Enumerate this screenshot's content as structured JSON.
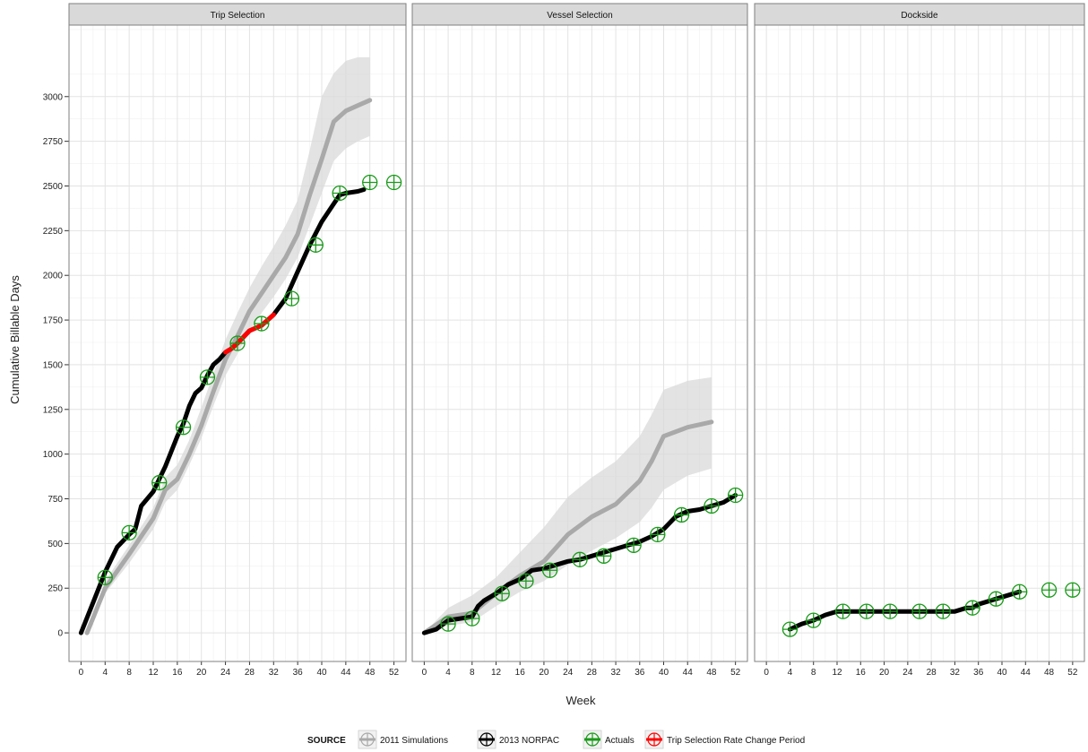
{
  "chart_data": {
    "type": "line",
    "xlabel": "Week",
    "ylabel": "Cumulative Billable Days",
    "xlim": [
      -2,
      54
    ],
    "ylim": [
      -160,
      3400
    ],
    "x_ticks": [
      0,
      4,
      8,
      12,
      16,
      20,
      24,
      28,
      32,
      36,
      40,
      44,
      48,
      52
    ],
    "y_ticks": [
      0,
      250,
      500,
      750,
      1000,
      1250,
      1500,
      1750,
      2000,
      2250,
      2500,
      2750,
      3000
    ],
    "grid": true,
    "legend_title": "SOURCE",
    "legend_position": "bottom",
    "legend": [
      {
        "label": "2011 Simulations",
        "color": "#a9a9a9",
        "icon": "grey-line-crosshair-icon"
      },
      {
        "label": "2013 NORPAC",
        "color": "#000000",
        "icon": "black-line-crosshair-icon"
      },
      {
        "label": "Actuals",
        "color": "#1a9a1a",
        "icon": "green-line-crosshair-icon"
      },
      {
        "label": "Trip Selection Rate Change Period",
        "color": "#ff0000",
        "icon": "red-line-crosshair-icon"
      }
    ],
    "colors": {
      "simulation": "#a9a9a9",
      "simulation_band": "#d9d9d9",
      "norpac": "#000000",
      "actuals": "#1a9a1a",
      "rate_change": "#ff0000",
      "strip_bg": "#d9d9d9"
    },
    "panels": [
      {
        "title": "Trip Selection",
        "simulation": {
          "x": [
            1,
            4,
            8,
            12,
            14,
            16,
            18,
            20,
            22,
            24,
            26,
            28,
            30,
            32,
            34,
            36,
            38,
            40,
            42,
            44,
            46,
            48
          ],
          "y": [
            0,
            250,
            440,
            640,
            800,
            860,
            1000,
            1160,
            1350,
            1530,
            1660,
            1800,
            1900,
            2000,
            2100,
            2230,
            2450,
            2650,
            2860,
            2920,
            2950,
            2980
          ],
          "lower": [
            0,
            220,
            390,
            580,
            730,
            800,
            940,
            1090,
            1270,
            1440,
            1560,
            1690,
            1790,
            1880,
            1980,
            2100,
            2280,
            2460,
            2640,
            2710,
            2750,
            2780
          ],
          "upper": [
            0,
            290,
            490,
            700,
            870,
            940,
            1080,
            1260,
            1450,
            1640,
            1790,
            1930,
            2050,
            2160,
            2280,
            2420,
            2700,
            3000,
            3130,
            3200,
            3220,
            3220
          ]
        },
        "norpac": {
          "x": [
            0,
            2,
            4,
            6,
            8,
            9,
            10,
            12,
            14,
            16,
            17,
            18,
            19,
            20,
            21,
            22,
            23,
            24,
            25,
            26,
            28,
            30,
            32,
            34,
            36,
            38,
            40,
            42,
            43,
            44,
            46,
            47
          ],
          "y": [
            0,
            170,
            340,
            480,
            550,
            580,
            710,
            790,
            930,
            1100,
            1170,
            1270,
            1340,
            1370,
            1440,
            1500,
            1530,
            1570,
            1590,
            1620,
            1690,
            1720,
            1780,
            1870,
            2020,
            2170,
            2300,
            2400,
            2450,
            2460,
            2470,
            2480
          ]
        },
        "rate_change": {
          "x": [
            24,
            25,
            26,
            28,
            30,
            32
          ],
          "y": [
            1570,
            1590,
            1620,
            1690,
            1720,
            1780
          ]
        },
        "actuals": {
          "x": [
            4,
            8,
            13,
            17,
            21,
            26,
            30,
            35,
            39,
            43,
            48,
            52
          ],
          "y": [
            310,
            560,
            840,
            1150,
            1430,
            1620,
            1730,
            1870,
            2170,
            2460,
            2520,
            2520
          ]
        }
      },
      {
        "title": "Vessel Selection",
        "simulation": {
          "x": [
            0,
            4,
            8,
            12,
            16,
            20,
            24,
            28,
            32,
            36,
            38,
            40,
            44,
            48
          ],
          "y": [
            0,
            90,
            110,
            220,
            320,
            400,
            550,
            650,
            720,
            850,
            960,
            1100,
            1150,
            1180
          ],
          "lower": [
            0,
            40,
            60,
            150,
            230,
            290,
            380,
            460,
            530,
            620,
            700,
            800,
            880,
            920
          ],
          "upper": [
            0,
            140,
            210,
            310,
            450,
            590,
            760,
            870,
            960,
            1100,
            1220,
            1360,
            1410,
            1430
          ]
        },
        "norpac": {
          "x": [
            0,
            2,
            4,
            6,
            8,
            9,
            10,
            12,
            14,
            16,
            18,
            20,
            22,
            24,
            26,
            28,
            30,
            32,
            34,
            36,
            38,
            40,
            42,
            44,
            46,
            48,
            50,
            52
          ],
          "y": [
            0,
            20,
            70,
            80,
            90,
            150,
            180,
            220,
            270,
            300,
            350,
            360,
            380,
            400,
            410,
            430,
            450,
            470,
            490,
            510,
            540,
            580,
            650,
            680,
            690,
            710,
            730,
            770
          ]
        },
        "actuals": {
          "x": [
            4,
            8,
            13,
            17,
            21,
            26,
            30,
            35,
            39,
            43,
            48,
            52
          ],
          "y": [
            50,
            80,
            220,
            290,
            350,
            410,
            430,
            490,
            550,
            660,
            710,
            770
          ]
        }
      },
      {
        "title": "Dockside",
        "norpac": {
          "x": [
            4,
            6,
            8,
            10,
            12,
            13,
            16,
            20,
            24,
            28,
            32,
            34,
            35,
            36,
            38,
            40,
            42,
            43
          ],
          "y": [
            20,
            50,
            70,
            100,
            120,
            120,
            120,
            120,
            120,
            120,
            120,
            140,
            140,
            160,
            180,
            200,
            220,
            230
          ]
        },
        "actuals": {
          "x": [
            4,
            8,
            13,
            17,
            21,
            26,
            30,
            35,
            39,
            43,
            48,
            52
          ],
          "y": [
            20,
            70,
            120,
            120,
            120,
            120,
            120,
            140,
            190,
            230,
            240,
            240
          ]
        }
      }
    ]
  }
}
